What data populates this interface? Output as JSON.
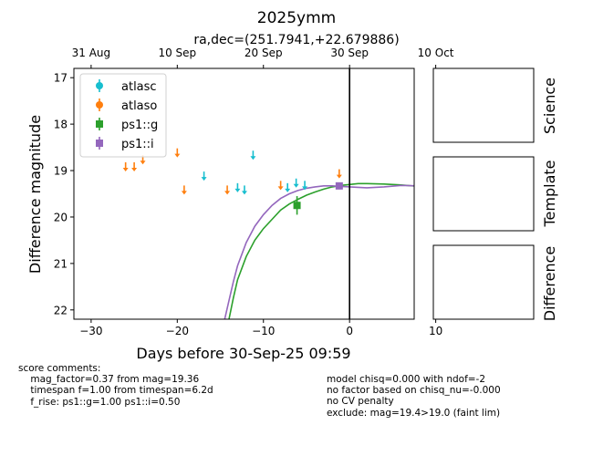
{
  "chart_data": {
    "type": "scatter",
    "title": "2025ymm",
    "subtitle": "ra,dec=(251.7941,+22.679886)",
    "xlabel": "Days before 30-Sep-25 09:59",
    "ylabel": "Difference magnitude",
    "xlim": [
      -32,
      7.5
    ],
    "ylim": [
      22.2,
      16.8
    ],
    "xticks": [
      -30,
      -20,
      -10,
      0,
      10
    ],
    "yticks": [
      17,
      18,
      19,
      20,
      21,
      22
    ],
    "top_axis_ticks": [
      {
        "x": -30,
        "label": "31 Aug"
      },
      {
        "x": -20,
        "label": "10 Sep"
      },
      {
        "x": -10,
        "label": "20 Sep"
      },
      {
        "x": 0,
        "label": "30 Sep"
      },
      {
        "x": 10,
        "label": "10 Oct"
      }
    ],
    "vline_x": 0,
    "legend_position": "top-left",
    "legend": [
      {
        "name": "atlasc",
        "color": "#17becf",
        "marker": "circle"
      },
      {
        "name": "atlaso",
        "color": "#ff7f0e",
        "marker": "circle"
      },
      {
        "name": "ps1::g",
        "color": "#2ca02c",
        "marker": "square"
      },
      {
        "name": "ps1::i",
        "color": "#9467bd",
        "marker": "square"
      }
    ],
    "series": [
      {
        "name": "atlasc",
        "color": "#17becf",
        "kind": "upper_limit",
        "x": [
          -16.9,
          -11.2,
          -13.0,
          -12.2,
          -7.2,
          -6.2,
          -5.2
        ],
        "y": [
          19.1,
          18.65,
          19.35,
          19.4,
          19.35,
          19.25,
          19.3
        ]
      },
      {
        "name": "atlaso",
        "color": "#ff7f0e",
        "kind": "upper_limit",
        "x": [
          -26.0,
          -25.0,
          -24.0,
          -20.0,
          -19.2,
          -14.2,
          -8.0,
          -1.2
        ],
        "y": [
          18.9,
          18.9,
          18.75,
          18.6,
          19.4,
          19.4,
          19.3,
          19.05
        ]
      },
      {
        "name": "ps1::g",
        "color": "#2ca02c",
        "kind": "detection",
        "x": [
          -6.1
        ],
        "y": [
          19.75
        ],
        "yerr": [
          0.2
        ]
      },
      {
        "name": "ps1::i",
        "color": "#9467bd",
        "kind": "detection",
        "x": [
          -1.2
        ],
        "y": [
          19.33
        ],
        "yerr": [
          0.05
        ]
      }
    ],
    "model_curves": [
      {
        "name": "ps1::g",
        "color": "#2ca02c",
        "points": [
          [
            -14.0,
            22.2
          ],
          [
            -13.5,
            21.75
          ],
          [
            -13.0,
            21.35
          ],
          [
            -12.0,
            20.85
          ],
          [
            -11.0,
            20.5
          ],
          [
            -10.0,
            20.25
          ],
          [
            -9.0,
            20.05
          ],
          [
            -8.0,
            19.85
          ],
          [
            -7.0,
            19.72
          ],
          [
            -6.0,
            19.62
          ],
          [
            -5.0,
            19.53
          ],
          [
            -4.0,
            19.46
          ],
          [
            -3.0,
            19.4
          ],
          [
            -2.0,
            19.35
          ],
          [
            -1.0,
            19.32
          ],
          [
            0.0,
            19.3
          ],
          [
            1.0,
            19.28
          ],
          [
            2.0,
            19.28
          ],
          [
            4.0,
            19.29
          ],
          [
            6.0,
            19.31
          ],
          [
            8.0,
            19.34
          ],
          [
            10.0,
            19.38
          ],
          [
            12.0,
            19.44
          ],
          [
            14.0,
            19.51
          ],
          [
            15.4,
            19.56
          ]
        ]
      },
      {
        "name": "ps1::i",
        "color": "#9467bd",
        "points": [
          [
            -14.5,
            22.2
          ],
          [
            -14.0,
            21.8
          ],
          [
            -13.5,
            21.4
          ],
          [
            -13.0,
            21.05
          ],
          [
            -12.0,
            20.55
          ],
          [
            -11.0,
            20.2
          ],
          [
            -10.0,
            19.95
          ],
          [
            -9.0,
            19.75
          ],
          [
            -8.0,
            19.6
          ],
          [
            -7.0,
            19.5
          ],
          [
            -6.0,
            19.43
          ],
          [
            -5.0,
            19.38
          ],
          [
            -4.0,
            19.35
          ],
          [
            -3.0,
            19.33
          ],
          [
            -2.0,
            19.33
          ],
          [
            -1.0,
            19.34
          ],
          [
            0.0,
            19.35
          ],
          [
            1.0,
            19.36
          ],
          [
            2.0,
            19.37
          ],
          [
            4.0,
            19.35
          ],
          [
            6.0,
            19.32
          ],
          [
            8.0,
            19.33
          ],
          [
            10.0,
            19.36
          ],
          [
            12.0,
            19.38
          ],
          [
            14.0,
            19.4
          ],
          [
            15.4,
            19.48
          ]
        ]
      }
    ]
  },
  "panels": [
    {
      "label": "Science"
    },
    {
      "label": "Template"
    },
    {
      "label": "Difference"
    }
  ],
  "comments_left": "score comments:\n    mag_factor=0.37 from mag=19.36\n    timespan f=1.00 from timespan=6.2d\n    f_rise: ps1::g=1.00 ps1::i=0.50",
  "comments_right": "model chisq=0.000 with ndof=-2\nno factor based on chisq_nu=-0.000\nno CV penalty\nexclude: mag=19.4>19.0 (faint lim)"
}
